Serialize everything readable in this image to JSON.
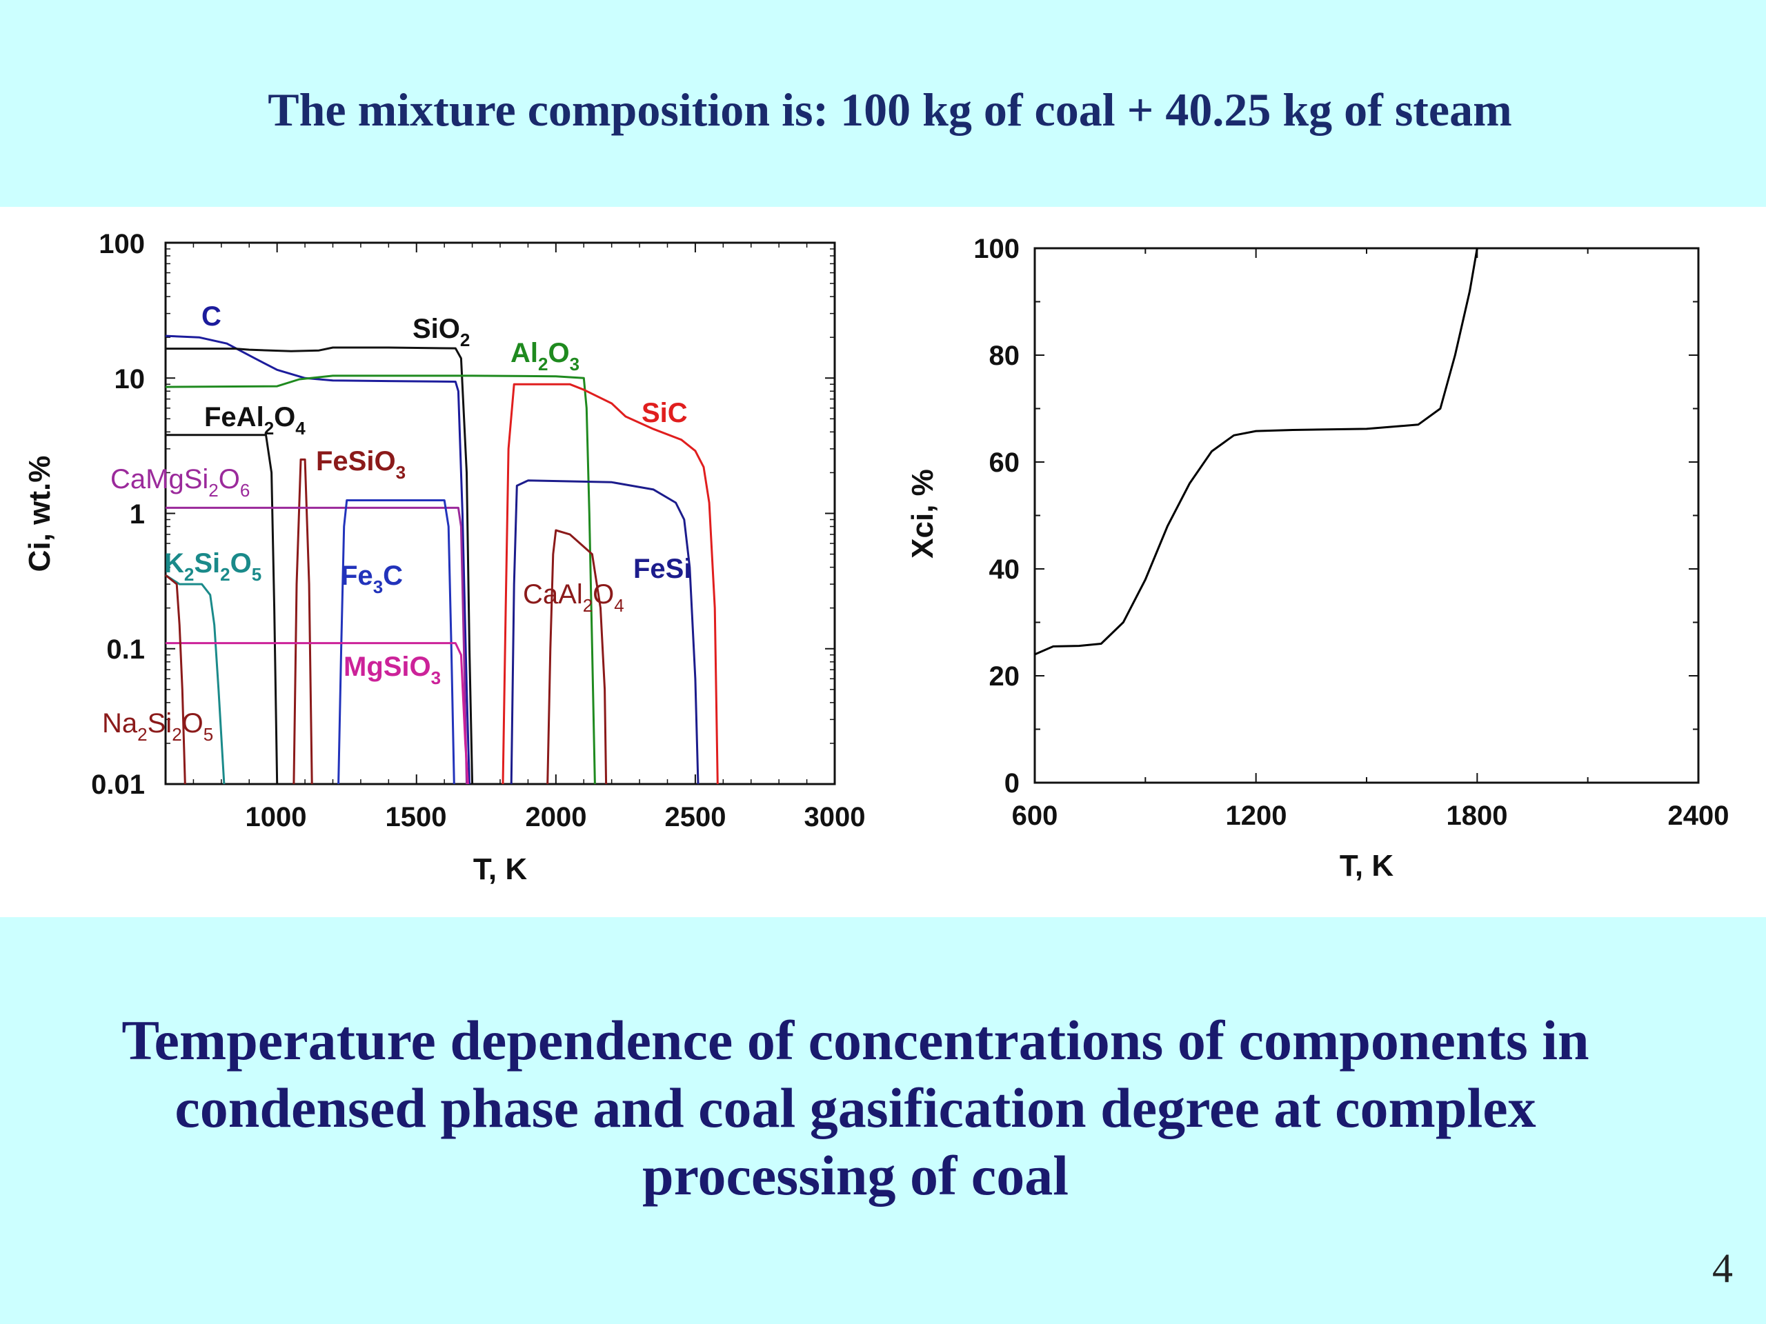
{
  "slide": {
    "heading": "The mixture composition is: 100 kg of coal + 40.25 kg of steam",
    "caption_lines": [
      "Temperature dependence of concentrations of components in",
      "condensed phase and coal gasification degree at complex",
      "processing of coal"
    ],
    "page_number": "4",
    "background_color": "#ccffff",
    "text_color": "#1a1a6e"
  },
  "chart_data": [
    {
      "type": "line",
      "yscale": "log",
      "xlabel": "T, K",
      "ylabel": "Ci, wt.%",
      "xlim": [
        600,
        3000
      ],
      "ylim": [
        0.01,
        100
      ],
      "xticks": [
        "1000",
        "1500",
        "2000",
        "2500",
        "3000"
      ],
      "yticks": [
        "0.01",
        "0.1",
        "1",
        "10",
        "100"
      ],
      "series": [
        {
          "name": "C",
          "name_parts": [
            [
              "C",
              ""
            ]
          ],
          "color": "#1c1c9c",
          "points": [
            [
              600,
              20.5
            ],
            [
              720,
              20
            ],
            [
              820,
              18
            ],
            [
              920,
              14
            ],
            [
              1000,
              11.5
            ],
            [
              1100,
              10
            ],
            [
              1200,
              9.6
            ],
            [
              1400,
              9.5
            ],
            [
              1640,
              9.4
            ],
            [
              1650,
              8
            ],
            [
              1665,
              1
            ],
            [
              1680,
              0.05
            ],
            [
              1690,
              0.01
            ]
          ]
        },
        {
          "name": "SiO2",
          "name_parts": [
            [
              "SiO",
              ""
            ],
            [
              "2",
              "sub"
            ]
          ],
          "color": "#111111",
          "points": [
            [
              600,
              16.5
            ],
            [
              850,
              16.5
            ],
            [
              900,
              16.2
            ],
            [
              1050,
              15.8
            ],
            [
              1150,
              16
            ],
            [
              1200,
              16.8
            ],
            [
              1400,
              16.8
            ],
            [
              1640,
              16.6
            ],
            [
              1660,
              14
            ],
            [
              1680,
              2
            ],
            [
              1690,
              0.1
            ],
            [
              1700,
              0.01
            ]
          ]
        },
        {
          "name": "Al2O3",
          "name_parts": [
            [
              "Al",
              ""
            ],
            [
              "2",
              "sub"
            ],
            [
              "O",
              ""
            ],
            [
              "3",
              "sub"
            ]
          ],
          "color": "#1f8a1f",
          "points": [
            [
              600,
              8.6
            ],
            [
              1000,
              8.7
            ],
            [
              1080,
              9.8
            ],
            [
              1200,
              10.4
            ],
            [
              1700,
              10.4
            ],
            [
              2000,
              10.3
            ],
            [
              2100,
              10
            ],
            [
              2110,
              6
            ],
            [
              2120,
              1
            ],
            [
              2130,
              0.1
            ],
            [
              2140,
              0.01
            ]
          ]
        },
        {
          "name": "SiC",
          "name_parts": [
            [
              "SiC",
              ""
            ]
          ],
          "color": "#e01e1e",
          "points": [
            [
              1810,
              0.01
            ],
            [
              1820,
              0.2
            ],
            [
              1830,
              3
            ],
            [
              1850,
              9
            ],
            [
              2050,
              9
            ],
            [
              2100,
              8.2
            ],
            [
              2200,
              6.5
            ],
            [
              2250,
              5.2
            ],
            [
              2350,
              4.2
            ],
            [
              2450,
              3.5
            ],
            [
              2500,
              2.9
            ],
            [
              2530,
              2.2
            ],
            [
              2550,
              1.2
            ],
            [
              2570,
              0.2
            ],
            [
              2580,
              0.01
            ]
          ]
        },
        {
          "name": "FeAl2O4",
          "name_parts": [
            [
              "FeAl",
              ""
            ],
            [
              "2",
              "sub"
            ],
            [
              "O",
              ""
            ],
            [
              "4",
              "sub"
            ]
          ],
          "color": "#111111",
          "points": [
            [
              600,
              3.8
            ],
            [
              960,
              3.8
            ],
            [
              980,
              2
            ],
            [
              990,
              0.2
            ],
            [
              1000,
              0.01
            ]
          ]
        },
        {
          "name": "FeSiO3",
          "name_parts": [
            [
              "FeSiO",
              ""
            ],
            [
              "3",
              "sub"
            ]
          ],
          "color": "#8b1a1a",
          "points": [
            [
              1060,
              0.01
            ],
            [
              1070,
              0.3
            ],
            [
              1085,
              2.5
            ],
            [
              1100,
              2.5
            ],
            [
              1115,
              0.3
            ],
            [
              1125,
              0.01
            ]
          ]
        },
        {
          "name": "CaMgSi2O6",
          "name_parts": [
            [
              "CaMgSi",
              ""
            ],
            [
              "2",
              "sub"
            ],
            [
              "O",
              ""
            ],
            [
              "6",
              "sub"
            ]
          ],
          "color": "#9b2a9b",
          "points": [
            [
              600,
              1.1
            ],
            [
              1650,
              1.1
            ],
            [
              1660,
              0.8
            ],
            [
              1670,
              0.1
            ],
            [
              1680,
              0.01
            ]
          ]
        },
        {
          "name": "Fe3C",
          "name_parts": [
            [
              "Fe",
              ""
            ],
            [
              "3",
              "sub"
            ],
            [
              "C",
              ""
            ]
          ],
          "color": "#2233bb",
          "points": [
            [
              1220,
              0.01
            ],
            [
              1230,
              0.1
            ],
            [
              1240,
              0.8
            ],
            [
              1250,
              1.25
            ],
            [
              1600,
              1.25
            ],
            [
              1615,
              0.8
            ],
            [
              1625,
              0.1
            ],
            [
              1635,
              0.01
            ]
          ]
        },
        {
          "name": "K2Si2O5",
          "name_parts": [
            [
              "K",
              ""
            ],
            [
              "2",
              "sub"
            ],
            [
              "Si",
              ""
            ],
            [
              "2",
              "sub"
            ],
            [
              "O",
              ""
            ],
            [
              "5",
              "sub"
            ]
          ],
          "color": "#1a8a8a",
          "points": [
            [
              600,
              0.35
            ],
            [
              650,
              0.3
            ],
            [
              730,
              0.3
            ],
            [
              760,
              0.25
            ],
            [
              775,
              0.15
            ],
            [
              790,
              0.05
            ],
            [
              810,
              0.01
            ]
          ]
        },
        {
          "name": "MgSiO3",
          "name_parts": [
            [
              "MgSiO",
              ""
            ],
            [
              "3",
              "sub"
            ]
          ],
          "color": "#cc2299",
          "points": [
            [
              600,
              0.11
            ],
            [
              1640,
              0.11
            ],
            [
              1660,
              0.09
            ],
            [
              1675,
              0.02
            ],
            [
              1685,
              0.01
            ]
          ]
        },
        {
          "name": "FeSi",
          "name_parts": [
            [
              "FeSi",
              ""
            ]
          ],
          "color": "#1c1c8c",
          "points": [
            [
              1840,
              0.01
            ],
            [
              1850,
              0.3
            ],
            [
              1860,
              1.6
            ],
            [
              1900,
              1.75
            ],
            [
              2200,
              1.7
            ],
            [
              2350,
              1.5
            ],
            [
              2430,
              1.2
            ],
            [
              2460,
              0.9
            ],
            [
              2480,
              0.4
            ],
            [
              2500,
              0.06
            ],
            [
              2510,
              0.01
            ]
          ]
        },
        {
          "name": "CaAl2O4",
          "name_parts": [
            [
              "CaAl",
              ""
            ],
            [
              "2",
              "sub"
            ],
            [
              "O",
              ""
            ],
            [
              "4",
              "sub"
            ]
          ],
          "color": "#8b1a1a",
          "points": [
            [
              1970,
              0.01
            ],
            [
              1980,
              0.1
            ],
            [
              1990,
              0.5
            ],
            [
              2000,
              0.75
            ],
            [
              2050,
              0.7
            ],
            [
              2130,
              0.5
            ],
            [
              2160,
              0.2
            ],
            [
              2175,
              0.05
            ],
            [
              2180,
              0.01
            ]
          ]
        },
        {
          "name": "Na2Si2O5",
          "name_parts": [
            [
              "Na",
              ""
            ],
            [
              "2",
              "sub"
            ],
            [
              "Si",
              ""
            ],
            [
              "2",
              "sub"
            ],
            [
              "O",
              ""
            ],
            [
              "5",
              "sub"
            ]
          ],
          "color": "#8b1a1a",
          "points": [
            [
              600,
              0.35
            ],
            [
              640,
              0.3
            ],
            [
              650,
              0.15
            ],
            [
              660,
              0.05
            ],
            [
              670,
              0.01
            ]
          ]
        }
      ]
    },
    {
      "type": "line",
      "xlabel": "T, K",
      "ylabel": "Xci, %",
      "xlim": [
        600,
        2400
      ],
      "ylim": [
        0,
        100
      ],
      "xticks": [
        "600",
        "1200",
        "1800",
        "2400"
      ],
      "yticks": [
        "0",
        "20",
        "40",
        "60",
        "80",
        "100"
      ],
      "series": [
        {
          "color": "#000000",
          "points": [
            [
              600,
              24
            ],
            [
              650,
              25.5
            ],
            [
              720,
              25.6
            ],
            [
              780,
              26
            ],
            [
              840,
              30
            ],
            [
              900,
              38
            ],
            [
              960,
              48
            ],
            [
              1020,
              56
            ],
            [
              1080,
              62
            ],
            [
              1140,
              65
            ],
            [
              1200,
              65.8
            ],
            [
              1300,
              66
            ],
            [
              1500,
              66.2
            ],
            [
              1640,
              67
            ],
            [
              1700,
              70
            ],
            [
              1740,
              80
            ],
            [
              1780,
              92
            ],
            [
              1800,
              100
            ]
          ]
        }
      ]
    }
  ]
}
